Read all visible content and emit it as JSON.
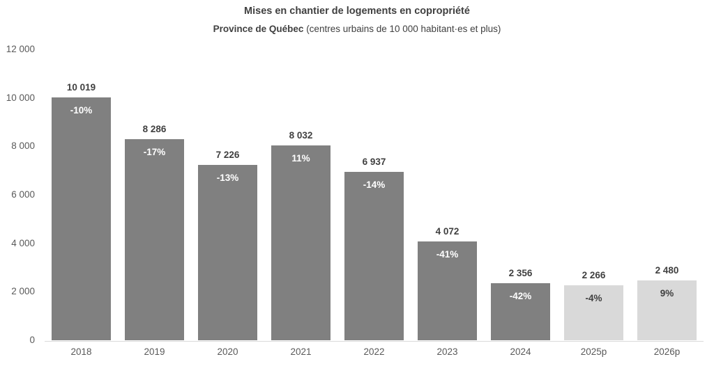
{
  "title": "Mises en chantier de logements en copropriété",
  "subtitle": {
    "bold": "Province de Québec",
    "rest": " (centres urbains de 10 000 habitant·es et plus)"
  },
  "chart_data": {
    "type": "bar",
    "title": "Mises en chantier de logements en copropriété",
    "subtitle_bold": "Province de Québec",
    "subtitle_rest": " (centres urbains de 10 000 habitant·es et plus)",
    "categories": [
      "2018",
      "2019",
      "2020",
      "2021",
      "2022",
      "2023",
      "2024",
      "2025p",
      "2026p"
    ],
    "values": [
      10019,
      8286,
      7226,
      8032,
      6937,
      4072,
      2356,
      2266,
      2480
    ],
    "value_labels": [
      "10 019",
      "8 286",
      "7 226",
      "8 032",
      "6 937",
      "4 072",
      "2 356",
      "2 266",
      "2 480"
    ],
    "pct_change_labels": [
      "-10%",
      "-17%",
      "-13%",
      "11%",
      "-14%",
      "-41%",
      "-42%",
      "-4%",
      "9%"
    ],
    "projected": [
      false,
      false,
      false,
      false,
      false,
      false,
      false,
      true,
      true
    ],
    "ylim": [
      0,
      12000
    ],
    "yticks": [
      0,
      2000,
      4000,
      6000,
      8000,
      10000,
      12000
    ],
    "ytick_labels": [
      "0",
      "2 000",
      "4 000",
      "6 000",
      "8 000",
      "10 000",
      "12 000"
    ],
    "grid": false,
    "legend": false,
    "colors": {
      "actual_bar": "#808080",
      "projected_bar": "#D9D9D9",
      "pct_on_actual": "#FFFFFF",
      "pct_on_projected": "#404040",
      "value_label": "#404040",
      "axis_label": "#595959",
      "baseline": "#D9D9D9"
    }
  }
}
